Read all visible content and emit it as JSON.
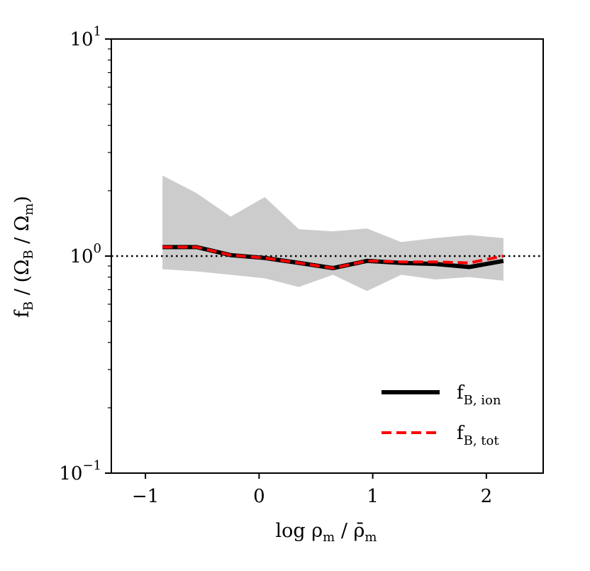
{
  "chart_data": {
    "type": "line",
    "title": "",
    "xlabel": "log ρm / ρ̄m",
    "xlabel_parts": {
      "base": "log ρ",
      "sub1": "m",
      "mid": " / ",
      "base2": "ρ̄",
      "sub2": "m"
    },
    "ylabel": "fB / (ΩB / Ωm)",
    "ylabel_parts": {
      "f": "f",
      "sub_b": "B",
      "open": " / (Ω",
      "sub_b2": "B",
      "slash": " / Ω",
      "sub_m": "m",
      "close": ")"
    },
    "xlim": [
      -1.3,
      2.5
    ],
    "ylim": [
      0.1,
      10
    ],
    "yscale": "log",
    "x_ticks": [
      -1,
      0,
      1,
      2
    ],
    "x_tick_labels": [
      "−1",
      "0",
      "1",
      "2"
    ],
    "y_ticks": [
      {
        "value": 10,
        "base": "10",
        "exp": "1"
      },
      {
        "value": 1,
        "base": "10",
        "exp": "0"
      },
      {
        "value": 0.1,
        "base": "10",
        "exp": "−1"
      }
    ],
    "reference_line": {
      "y": 1.0,
      "style": "dotted",
      "color": "#000000"
    },
    "band": {
      "color": "#cccccc",
      "x": [
        -0.85,
        -0.55,
        -0.25,
        0.05,
        0.35,
        0.65,
        0.95,
        1.25,
        1.55,
        1.85,
        2.15
      ],
      "upper": [
        2.35,
        1.95,
        1.52,
        1.87,
        1.33,
        1.3,
        1.34,
        1.16,
        1.21,
        1.25,
        1.21
      ],
      "lower": [
        0.87,
        0.85,
        0.82,
        0.79,
        0.72,
        0.82,
        0.69,
        0.82,
        0.78,
        0.8,
        0.77
      ]
    },
    "series": [
      {
        "name": "f_B,ion",
        "label_base": "f",
        "label_sub": "B, ion",
        "color": "#000000",
        "style": "solid",
        "x": [
          -0.85,
          -0.55,
          -0.25,
          0.05,
          0.35,
          0.65,
          0.95,
          1.25,
          1.55,
          1.85,
          2.15
        ],
        "values": [
          1.1,
          1.1,
          1.01,
          0.98,
          0.93,
          0.88,
          0.95,
          0.93,
          0.92,
          0.89,
          0.95
        ]
      },
      {
        "name": "f_B,tot",
        "label_base": "f",
        "label_sub": "B, tot",
        "color": "#ff0000",
        "style": "dashed",
        "x": [
          -0.85,
          -0.55,
          -0.25,
          0.05,
          0.35,
          0.65,
          0.95,
          1.25,
          1.55,
          1.85,
          2.15
        ],
        "values": [
          1.1,
          1.1,
          1.01,
          0.98,
          0.93,
          0.88,
          0.95,
          0.94,
          0.94,
          0.93,
          1.0
        ]
      }
    ],
    "legend": {
      "placement": "lower-right"
    }
  }
}
